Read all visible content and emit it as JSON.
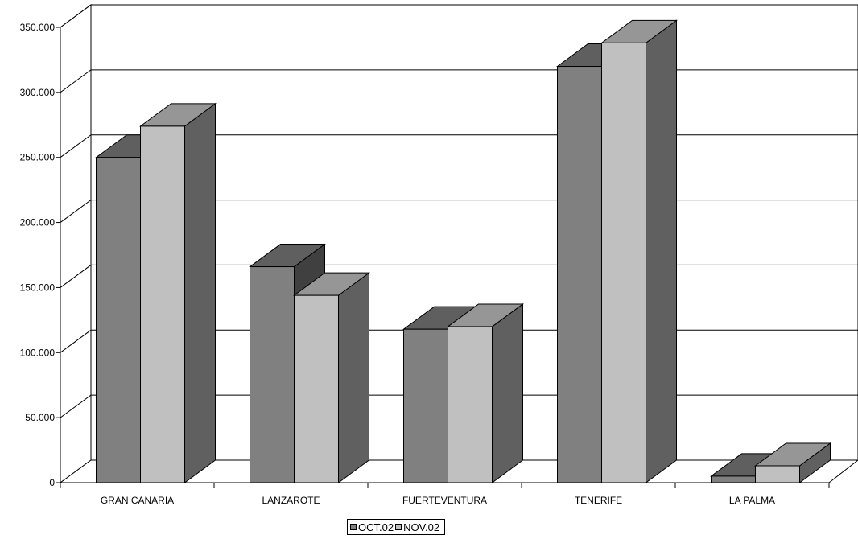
{
  "chart_data": {
    "type": "bar",
    "categories": [
      "GRAN CANARIA",
      "LANZAROTE",
      "FUERTEVENTURA",
      "TENERIFE",
      "LA PALMA"
    ],
    "series": [
      {
        "name": "OCT.02",
        "values": [
          250000,
          166000,
          118000,
          320000,
          5000
        ],
        "color": "#808080"
      },
      {
        "name": "NOV.02",
        "values": [
          274000,
          144000,
          120000,
          338000,
          13000
        ],
        "color": "#c0c0c0"
      }
    ],
    "ylim": [
      0,
      350000
    ],
    "yticks": [
      {
        "value": 0,
        "label": "0"
      },
      {
        "value": 50000,
        "label": "50.000"
      },
      {
        "value": 100000,
        "label": "100.000"
      },
      {
        "value": 150000,
        "label": "150.000"
      },
      {
        "value": 200000,
        "label": "200.000"
      },
      {
        "value": 250000,
        "label": "250.000"
      },
      {
        "value": 300000,
        "label": "300.000"
      },
      {
        "value": 350000,
        "label": "350.000"
      }
    ],
    "grid": true,
    "legend_position": "bottom-center",
    "three_d": true
  }
}
